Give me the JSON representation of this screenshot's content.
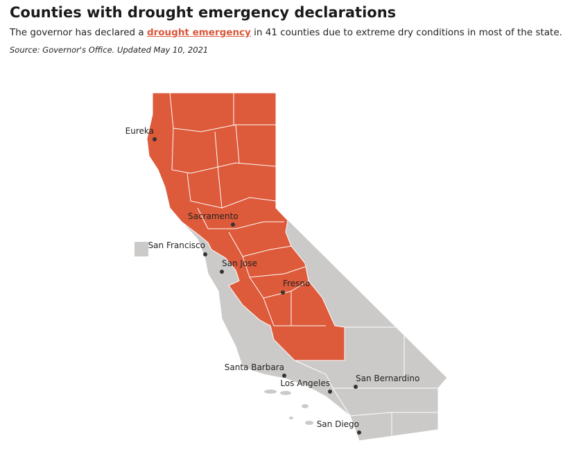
{
  "header": {
    "title": "Counties with drought emergency declarations",
    "subtitle": {
      "before": "The governor has declared a ",
      "link": "drought emergency",
      "after": " in 41 counties due to extreme dry conditions in most of the state."
    },
    "source": "Source: Governor's Office. Updated May 10, 2021"
  },
  "map": {
    "cities": [
      "Eureka",
      "Sacramento",
      "San Francisco",
      "San Jose",
      "Fresno",
      "Santa Barbara",
      "Los Angeles",
      "San Bernardino",
      "San Diego"
    ]
  }
}
